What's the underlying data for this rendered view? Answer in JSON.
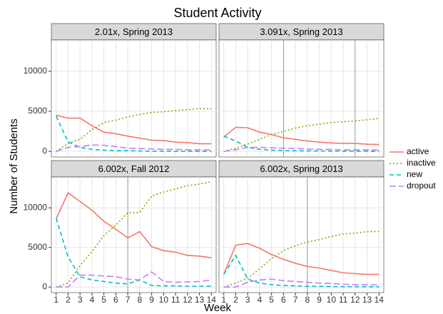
{
  "title": "Student Activity",
  "x_label": "Week",
  "y_label": "Number of Students",
  "legend": [
    {
      "name": "active",
      "color": "#F8766D",
      "dash": "solid"
    },
    {
      "name": "inactive",
      "color": "#7CAE00",
      "dash": "dotted"
    },
    {
      "name": "new",
      "color": "#00BFC4",
      "dash": "dashed"
    },
    {
      "name": "dropout",
      "color": "#C77CFF",
      "dash": "longdash"
    }
  ],
  "chart_data": [
    {
      "type": "line",
      "subtitle": "2.01x, Spring 2013",
      "x": [
        1,
        2,
        3,
        4,
        5,
        6,
        7,
        8,
        9,
        10,
        11,
        12,
        13,
        14
      ],
      "series": [
        {
          "values": [
            4500,
            4150,
            4150,
            3200,
            2400,
            2200,
            1900,
            1650,
            1400,
            1350,
            1150,
            1100,
            950,
            950
          ]
        },
        {
          "values": [
            0,
            1000,
            1500,
            2700,
            3600,
            3900,
            4300,
            4600,
            4850,
            4950,
            5100,
            5200,
            5350,
            5300
          ]
        },
        {
          "values": [
            4400,
            1200,
            500,
            250,
            150,
            100,
            100,
            50,
            30,
            20,
            20,
            10,
            10,
            10
          ]
        },
        {
          "values": [
            0,
            500,
            600,
            800,
            750,
            600,
            400,
            350,
            300,
            250,
            250,
            200,
            200,
            180
          ]
        }
      ],
      "vlines": [],
      "xlim": [
        0.6,
        14.4
      ],
      "ylim": [
        -700,
        13900
      ],
      "xticks": [
        1,
        2,
        3,
        4,
        5,
        6,
        7,
        8,
        9,
        10,
        11,
        12,
        13,
        14
      ],
      "yticks": [
        0,
        5000,
        10000
      ],
      "grid": true
    },
    {
      "type": "line",
      "subtitle": "3.091x, Spring 2013",
      "x": [
        1,
        2,
        3,
        4,
        5,
        6,
        7,
        8,
        9,
        10,
        11,
        12,
        13,
        14
      ],
      "series": [
        {
          "values": [
            1800,
            3000,
            2950,
            2400,
            2100,
            1700,
            1500,
            1300,
            1150,
            1050,
            1000,
            1000,
            900,
            850
          ]
        },
        {
          "values": [
            0,
            400,
            900,
            1500,
            2100,
            2500,
            2900,
            3200,
            3400,
            3600,
            3700,
            3800,
            3950,
            4100
          ]
        },
        {
          "values": [
            1900,
            1300,
            500,
            250,
            150,
            100,
            80,
            60,
            50,
            40,
            30,
            30,
            20,
            20
          ]
        },
        {
          "values": [
            0,
            200,
            500,
            500,
            450,
            400,
            350,
            300,
            250,
            250,
            200,
            200,
            200,
            150
          ]
        }
      ],
      "vlines": [
        6,
        12
      ],
      "xlim": [
        0.6,
        14.4
      ],
      "ylim": [
        -700,
        13900
      ],
      "xticks": [
        1,
        2,
        3,
        4,
        5,
        6,
        7,
        8,
        9,
        10,
        11,
        12,
        13,
        14
      ],
      "yticks": [
        0,
        5000,
        10000
      ],
      "grid": true
    },
    {
      "type": "line",
      "subtitle": "6.002x, Fall 2012",
      "x": [
        1,
        2,
        3,
        4,
        5,
        6,
        7,
        8,
        9,
        10,
        11,
        12,
        13,
        14
      ],
      "series": [
        {
          "values": [
            8600,
            11900,
            10800,
            9700,
            8300,
            7300,
            6200,
            7000,
            5100,
            4600,
            4400,
            4000,
            3900,
            3700
          ]
        },
        {
          "values": [
            0,
            500,
            2700,
            4500,
            6500,
            7800,
            9400,
            9400,
            11500,
            12000,
            12400,
            12800,
            13000,
            13300
          ]
        },
        {
          "values": [
            8700,
            3800,
            1300,
            900,
            700,
            500,
            400,
            900,
            200,
            150,
            150,
            100,
            100,
            100
          ]
        },
        {
          "values": [
            0,
            0,
            1500,
            1500,
            1400,
            1300,
            1000,
            900,
            1900,
            700,
            600,
            650,
            700,
            900
          ]
        }
      ],
      "vlines": [
        7
      ],
      "xlim": [
        0.6,
        14.4
      ],
      "ylim": [
        -700,
        13900
      ],
      "xticks": [
        1,
        2,
        3,
        4,
        5,
        6,
        7,
        8,
        9,
        10,
        11,
        12,
        13,
        14
      ],
      "yticks": [
        0,
        5000,
        10000
      ],
      "grid": true
    },
    {
      "type": "line",
      "subtitle": "6.002x, Spring 2013",
      "x": [
        1,
        2,
        3,
        4,
        5,
        6,
        7,
        8,
        9,
        10,
        11,
        12,
        13,
        14
      ],
      "series": [
        {
          "values": [
            1600,
            5300,
            5500,
            4900,
            4100,
            3500,
            3000,
            2600,
            2400,
            2100,
            1800,
            1700,
            1600,
            1600
          ]
        },
        {
          "values": [
            0,
            500,
            1100,
            2300,
            3600,
            4600,
            5200,
            5700,
            6000,
            6400,
            6700,
            6800,
            7000,
            7000
          ]
        },
        {
          "values": [
            1600,
            4000,
            1000,
            500,
            300,
            200,
            150,
            100,
            80,
            60,
            50,
            40,
            40,
            30
          ]
        },
        {
          "values": [
            0,
            0,
            600,
            900,
            1000,
            800,
            700,
            600,
            500,
            450,
            350,
            300,
            300,
            250
          ]
        }
      ],
      "vlines": [
        8
      ],
      "xlim": [
        0.6,
        14.4
      ],
      "ylim": [
        -700,
        13900
      ],
      "xticks": [
        1,
        2,
        3,
        4,
        5,
        6,
        7,
        8,
        9,
        10,
        11,
        12,
        13,
        14
      ],
      "yticks": [
        0,
        5000,
        10000
      ],
      "grid": true
    }
  ]
}
